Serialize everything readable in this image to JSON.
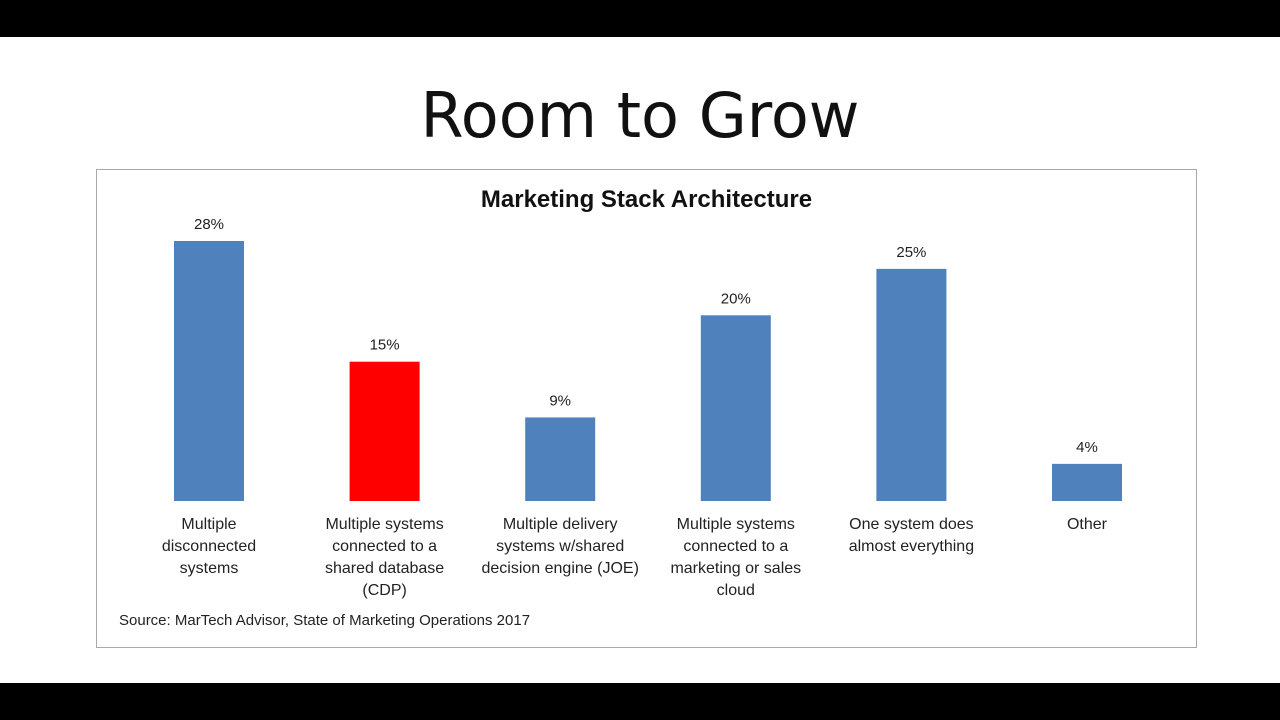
{
  "slide": {
    "title": "Room to Grow"
  },
  "chart_data": {
    "type": "bar",
    "title": "Marketing Stack Architecture",
    "categories": [
      [
        "Multiple",
        "disconnected",
        "systems"
      ],
      [
        "Multiple systems",
        "connected to a",
        "shared database",
        "(CDP)"
      ],
      [
        "Multiple delivery",
        "systems w/shared",
        "decision engine (JOE)"
      ],
      [
        "Multiple systems",
        "connected to a",
        "marketing or sales",
        "cloud"
      ],
      [
        "One system does",
        "almost everything"
      ],
      [
        "Other"
      ]
    ],
    "values": [
      28,
      15,
      9,
      20,
      25,
      4
    ],
    "data_labels": [
      "28%",
      "15%",
      "9%",
      "20%",
      "25%",
      "4%"
    ],
    "colors": [
      "#4f81bd",
      "#ff0000",
      "#4f81bd",
      "#4f81bd",
      "#4f81bd",
      "#4f81bd"
    ],
    "ylim": [
      0,
      28
    ],
    "grid": false,
    "legend": "none",
    "source": "Source: MarTech Advisor, State of Marketing Operations 2017"
  }
}
